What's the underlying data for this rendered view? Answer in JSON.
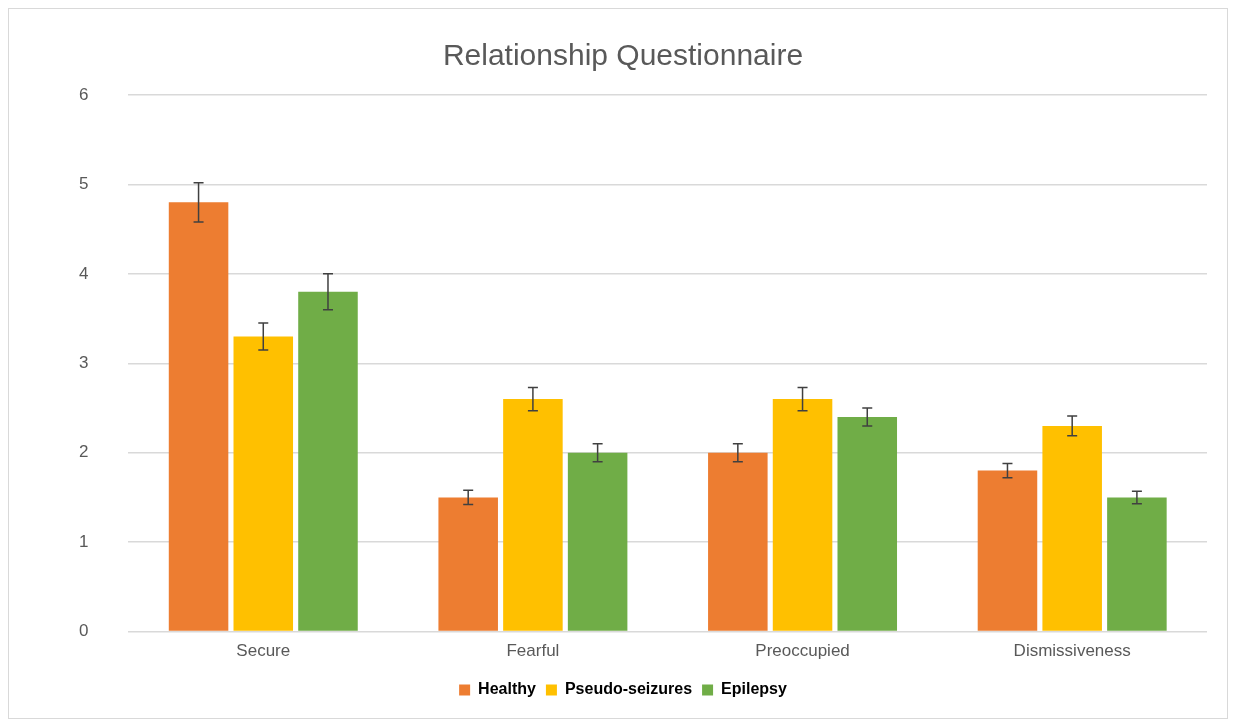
{
  "chart_data": {
    "type": "bar",
    "title": "Relationship Questionnaire",
    "categories": [
      "Secure",
      "Fearful",
      "Preoccupied",
      "Dismissiveness"
    ],
    "series": [
      {
        "name": "Healthy",
        "color": "#ed7d31",
        "values": [
          4.8,
          1.5,
          2.0,
          1.8
        ],
        "errors": [
          0.22,
          0.08,
          0.1,
          0.08
        ]
      },
      {
        "name": "Pseudo-seizures",
        "color": "#ffc000",
        "values": [
          3.3,
          2.6,
          2.6,
          2.3
        ],
        "errors": [
          0.15,
          0.13,
          0.13,
          0.11
        ]
      },
      {
        "name": "Epilepsy",
        "color": "#70ad47",
        "values": [
          3.8,
          2.0,
          2.4,
          1.5
        ],
        "errors": [
          0.2,
          0.1,
          0.1,
          0.07
        ]
      }
    ],
    "ylim": [
      0,
      6
    ],
    "yticks": [
      0,
      1,
      2,
      3,
      4,
      5,
      6
    ],
    "grid": "y",
    "legend": "bottom"
  }
}
